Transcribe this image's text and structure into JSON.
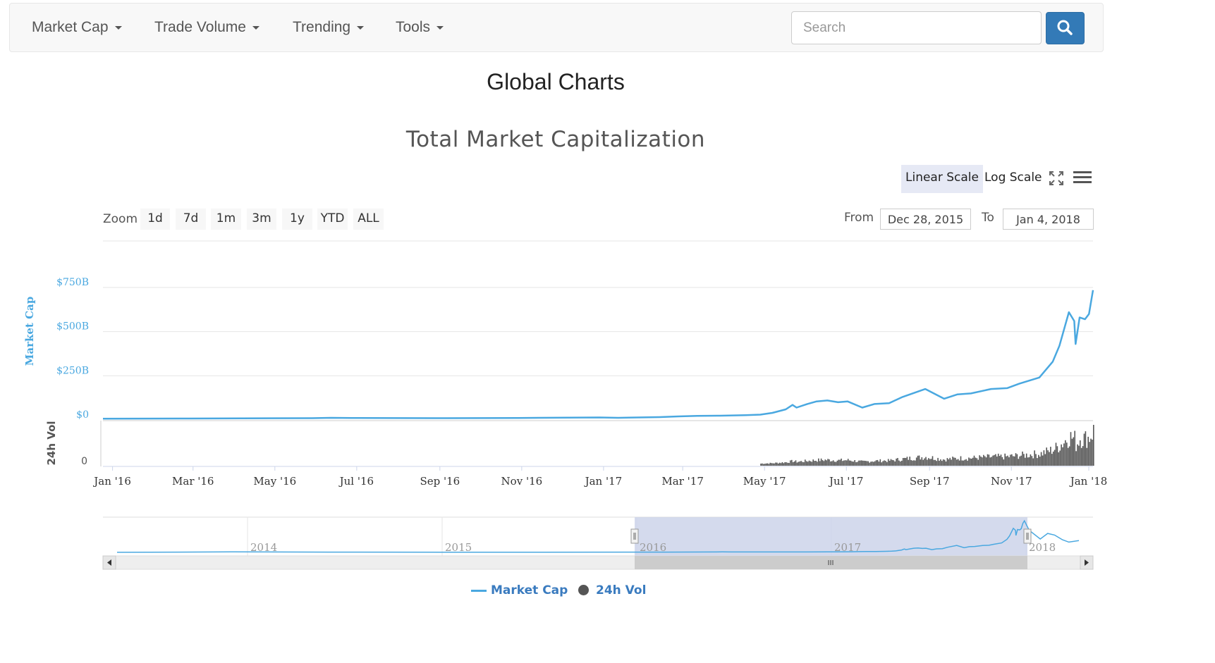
{
  "nav": {
    "items": [
      {
        "label": "Market Cap"
      },
      {
        "label": "Trade Volume"
      },
      {
        "label": "Trending"
      },
      {
        "label": "Tools"
      }
    ],
    "search_placeholder": "Search"
  },
  "page_title": "Global Charts",
  "toolbar": {
    "linear_scale": "Linear Scale",
    "log_scale": "Log Scale",
    "zoom_label": "Zoom",
    "zoom_buttons": [
      "1d",
      "7d",
      "1m",
      "3m",
      "1y",
      "YTD",
      "ALL"
    ],
    "from_label": "From",
    "from_value": "Dec 28, 2015",
    "to_label": "To",
    "to_value": "Jan 4, 2018"
  },
  "colors": {
    "market_cap": "#4aa8e0",
    "volume": "#555555",
    "navigator_mask": "#ccd3ea",
    "search_button": "#337ab7"
  },
  "chart_data": {
    "type": "line",
    "title": "Total Market Capitalization",
    "scale": "linear",
    "y_axis_market_cap": {
      "label": "Market Cap",
      "tick_labels": [
        "$0",
        "$250B",
        "$500B",
        "$750B"
      ],
      "ticks": [
        0,
        250,
        500,
        750
      ],
      "unit": "B USD"
    },
    "y_axis_volume": {
      "label": "24h Vol",
      "tick_labels": [
        "0"
      ],
      "ticks": [
        0
      ]
    },
    "x_tick_labels": [
      "Jan '16",
      "Mar '16",
      "May '16",
      "Jul '16",
      "Sep '16",
      "Nov '16",
      "Jan '17",
      "Mar '17",
      "May '17",
      "Jul '17",
      "Sep '17",
      "Nov '17",
      "Jan '18"
    ],
    "range": {
      "from": "2015-12-28",
      "to": "2018-01-04"
    },
    "series": [
      {
        "name": "Market Cap",
        "points": [
          [
            "2015-12-28",
            7
          ],
          [
            "2016-03-01",
            8
          ],
          [
            "2016-06-01",
            10
          ],
          [
            "2016-06-15",
            12
          ],
          [
            "2016-07-01",
            11
          ],
          [
            "2016-09-01",
            10
          ],
          [
            "2016-11-01",
            11
          ],
          [
            "2017-01-01",
            14
          ],
          [
            "2017-01-15",
            12
          ],
          [
            "2017-02-15",
            16
          ],
          [
            "2017-03-01",
            20
          ],
          [
            "2017-03-15",
            23
          ],
          [
            "2017-04-01",
            24
          ],
          [
            "2017-04-20",
            27
          ],
          [
            "2017-05-01",
            30
          ],
          [
            "2017-05-10",
            40
          ],
          [
            "2017-05-20",
            60
          ],
          [
            "2017-05-25",
            85
          ],
          [
            "2017-05-28",
            70
          ],
          [
            "2017-06-05",
            90
          ],
          [
            "2017-06-12",
            105
          ],
          [
            "2017-06-20",
            110
          ],
          [
            "2017-06-28",
            100
          ],
          [
            "2017-07-05",
            105
          ],
          [
            "2017-07-16",
            70
          ],
          [
            "2017-07-25",
            90
          ],
          [
            "2017-08-05",
            95
          ],
          [
            "2017-08-15",
            130
          ],
          [
            "2017-09-01",
            175
          ],
          [
            "2017-09-15",
            120
          ],
          [
            "2017-09-25",
            145
          ],
          [
            "2017-10-05",
            150
          ],
          [
            "2017-10-20",
            175
          ],
          [
            "2017-11-01",
            180
          ],
          [
            "2017-11-10",
            205
          ],
          [
            "2017-11-25",
            240
          ],
          [
            "2017-12-05",
            330
          ],
          [
            "2017-12-10",
            420
          ],
          [
            "2017-12-17",
            610
          ],
          [
            "2017-12-21",
            560
          ],
          [
            "2017-12-22",
            430
          ],
          [
            "2017-12-25",
            580
          ],
          [
            "2017-12-29",
            570
          ],
          [
            "2018-01-01",
            600
          ],
          [
            "2018-01-04",
            735
          ]
        ]
      },
      {
        "name": "24h Vol",
        "note_ticks_only": true
      }
    ],
    "navigator": {
      "year_labels": [
        "2014",
        "2015",
        "2016",
        "2017",
        "2018"
      ]
    },
    "legend": {
      "position": "bottom-center",
      "items": [
        "Market Cap",
        "24h Vol"
      ]
    }
  }
}
